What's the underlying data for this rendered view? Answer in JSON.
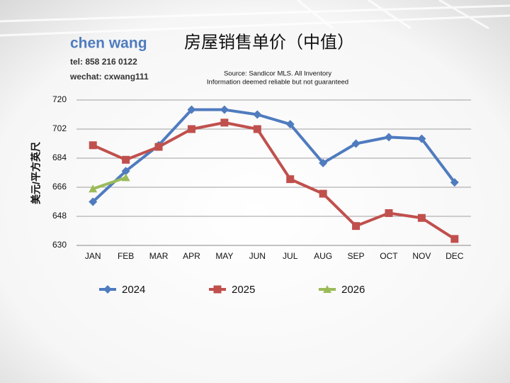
{
  "contact": {
    "name": "chen wang",
    "tel": "tel: 858 216 0122",
    "wechat": "wechat: cxwang111"
  },
  "chart_data": {
    "type": "line",
    "title": "房屋销售单价（中值）",
    "annotations": [
      "Source: Sandicor MLS. All Inventory",
      "Information deemed reliable but not guaranteed"
    ],
    "y_label": "美元/平方英尺",
    "categories": [
      "JAN",
      "FEB",
      "MAR",
      "APR",
      "MAY",
      "JUN",
      "JUL",
      "AUG",
      "SEP",
      "OCT",
      "NOV",
      "DEC"
    ],
    "series": [
      {
        "name": "2024",
        "color": "#4f7bbf",
        "marker": "diamond",
        "values": [
          657,
          676,
          692,
          714,
          714,
          711,
          705,
          681,
          693,
          697,
          696,
          669
        ]
      },
      {
        "name": "2025",
        "color": "#c0504d",
        "marker": "square",
        "values": [
          692,
          683,
          691,
          702,
          706,
          702,
          671,
          662,
          642,
          650,
          647,
          634
        ]
      },
      {
        "name": "2026",
        "color": "#9bbb59",
        "marker": "triangle",
        "values": [
          665,
          672,
          null,
          null,
          null,
          null,
          null,
          null,
          null,
          null,
          null,
          null
        ]
      }
    ],
    "ylim": [
      630,
      720
    ],
    "yticks": [
      630,
      648,
      666,
      684,
      702,
      720
    ],
    "grid": true,
    "legend": "bottom"
  }
}
